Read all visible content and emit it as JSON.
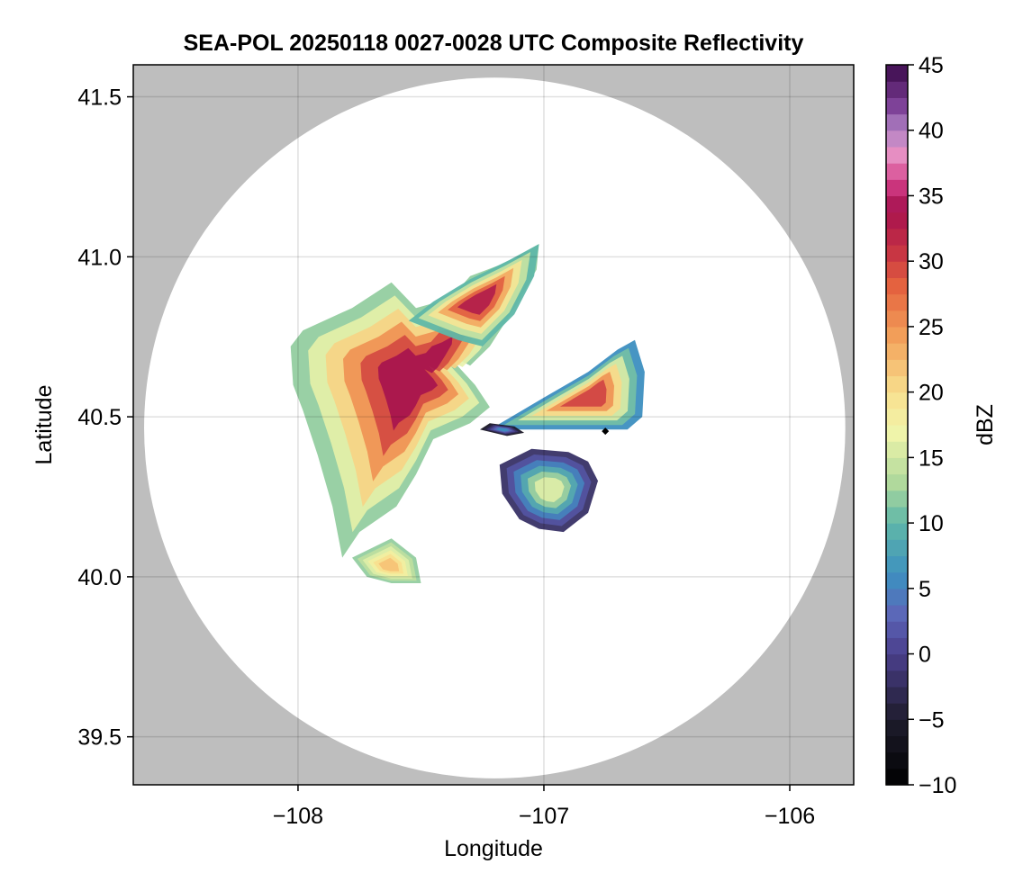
{
  "chart_data": {
    "type": "heatmap",
    "title": "SEA-POL 20250118 0027-0028 UTC Composite Reflectivity",
    "xlabel": "Longitude",
    "ylabel": "Latitude",
    "xlim": [
      -108.67,
      -105.74
    ],
    "ylim": [
      39.35,
      41.6
    ],
    "grid": true,
    "x_ticks": [
      -108,
      -107,
      -106
    ],
    "x_tick_labels": [
      "−108",
      "−107",
      "−106"
    ],
    "y_ticks": [
      39.5,
      40.0,
      40.5,
      41.0,
      41.5
    ],
    "y_tick_labels": [
      "39.5",
      "40.0",
      "40.5",
      "41.0",
      "41.5"
    ],
    "radar_center": {
      "lon": -107.2,
      "lat": 40.465
    },
    "radar_range_deg_lat": 1.095,
    "outside_range_color": "#bebebe",
    "marker": {
      "lon": -106.75,
      "lat": 40.455,
      "symbol": "diamond",
      "color": "#000000"
    },
    "colorbar": {
      "label": "dBZ",
      "min": -10,
      "max": 45,
      "step": 1.25,
      "ticks": [
        -10,
        -5,
        0,
        5,
        10,
        15,
        20,
        25,
        30,
        35,
        40,
        45
      ],
      "tick_labels": [
        "−10",
        "−5",
        "0",
        "5",
        "10",
        "15",
        "20",
        "25",
        "30",
        "35",
        "40",
        "45"
      ],
      "colormap": "spectral_r-black-to-purple",
      "colormap_stops": [
        {
          "value": -10,
          "color": "#000000"
        },
        {
          "value": -5,
          "color": "#1e1c2c"
        },
        {
          "value": 0,
          "color": "#4a3f8c"
        },
        {
          "value": 3,
          "color": "#5c66b8"
        },
        {
          "value": 6,
          "color": "#3d8fc0"
        },
        {
          "value": 10,
          "color": "#5fb7a8"
        },
        {
          "value": 13,
          "color": "#aed89c"
        },
        {
          "value": 17,
          "color": "#f1f5aa"
        },
        {
          "value": 20,
          "color": "#f8df8e"
        },
        {
          "value": 24,
          "color": "#f3a45c"
        },
        {
          "value": 28,
          "color": "#e5643f"
        },
        {
          "value": 31,
          "color": "#c42f43"
        },
        {
          "value": 34,
          "color": "#a6124f"
        },
        {
          "value": 36,
          "color": "#d23c86"
        },
        {
          "value": 38,
          "color": "#e98fc2"
        },
        {
          "value": 40,
          "color": "#b285c6"
        },
        {
          "value": 42,
          "color": "#7b3d95"
        },
        {
          "value": 45,
          "color": "#3a0a4a"
        }
      ]
    },
    "echo_regions": [
      {
        "name": "western-main-mass",
        "approx_dbz_range": [
          12,
          34
        ],
        "polygon_lonlat": [
          [
            -107.98,
            40.77
          ],
          [
            -107.78,
            40.84
          ],
          [
            -107.62,
            40.92
          ],
          [
            -107.52,
            40.84
          ],
          [
            -107.38,
            40.87
          ],
          [
            -107.3,
            40.94
          ],
          [
            -107.16,
            40.98
          ],
          [
            -107.02,
            41.04
          ],
          [
            -107.03,
            40.96
          ],
          [
            -107.12,
            40.84
          ],
          [
            -107.22,
            40.72
          ],
          [
            -107.3,
            40.66
          ],
          [
            -107.4,
            40.7
          ],
          [
            -107.28,
            40.6
          ],
          [
            -107.22,
            40.53
          ],
          [
            -107.3,
            40.48
          ],
          [
            -107.45,
            40.43
          ],
          [
            -107.52,
            40.32
          ],
          [
            -107.6,
            40.22
          ],
          [
            -107.75,
            40.14
          ],
          [
            -107.82,
            40.06
          ],
          [
            -107.86,
            40.22
          ],
          [
            -107.92,
            40.38
          ],
          [
            -107.98,
            40.52
          ],
          [
            -108.02,
            40.6
          ],
          [
            -108.03,
            40.72
          ]
        ]
      },
      {
        "name": "northern-band",
        "approx_dbz_range": [
          10,
          33
        ],
        "polygon_lonlat": [
          [
            -107.55,
            40.8
          ],
          [
            -107.45,
            40.86
          ],
          [
            -107.3,
            40.93
          ],
          [
            -107.14,
            40.99
          ],
          [
            -107.02,
            41.04
          ],
          [
            -107.04,
            40.94
          ],
          [
            -107.12,
            40.82
          ],
          [
            -107.25,
            40.72
          ],
          [
            -107.35,
            40.74
          ],
          [
            -107.45,
            40.77
          ]
        ]
      },
      {
        "name": "eastern-wedge",
        "approx_dbz_range": [
          6,
          30
        ],
        "polygon_lonlat": [
          [
            -107.22,
            40.46
          ],
          [
            -107.0,
            40.56
          ],
          [
            -106.82,
            40.64
          ],
          [
            -106.7,
            40.71
          ],
          [
            -106.63,
            40.74
          ],
          [
            -106.59,
            40.64
          ],
          [
            -106.6,
            40.5
          ],
          [
            -106.66,
            40.46
          ],
          [
            -106.85,
            40.46
          ],
          [
            -107.05,
            40.46
          ]
        ]
      },
      {
        "name": "southeast-cell",
        "approx_dbz_range": [
          -2,
          16
        ],
        "polygon_lonlat": [
          [
            -107.18,
            40.35
          ],
          [
            -107.05,
            40.4
          ],
          [
            -106.9,
            40.39
          ],
          [
            -106.82,
            40.36
          ],
          [
            -106.78,
            40.3
          ],
          [
            -106.82,
            40.2
          ],
          [
            -106.92,
            40.14
          ],
          [
            -107.02,
            40.15
          ],
          [
            -107.1,
            40.18
          ],
          [
            -107.17,
            40.26
          ]
        ]
      },
      {
        "name": "near-radar-weak-echo",
        "approx_dbz_range": [
          -6,
          6
        ],
        "polygon_lonlat": [
          [
            -107.26,
            40.46
          ],
          [
            -107.15,
            40.44
          ],
          [
            -107.08,
            40.45
          ],
          [
            -107.12,
            40.47
          ],
          [
            -107.22,
            40.48
          ]
        ]
      },
      {
        "name": "southwest-fragments",
        "approx_dbz_range": [
          12,
          22
        ],
        "polygon_lonlat": [
          [
            -107.78,
            40.06
          ],
          [
            -107.62,
            40.12
          ],
          [
            -107.52,
            40.06
          ],
          [
            -107.5,
            39.98
          ],
          [
            -107.62,
            39.98
          ],
          [
            -107.72,
            40.0
          ]
        ]
      }
    ]
  }
}
